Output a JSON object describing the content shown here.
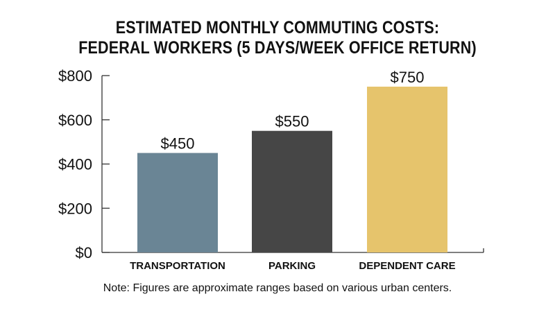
{
  "chart_data": {
    "type": "bar",
    "title_lines": [
      "ESTIMATED MONTHLY COMMUTING COSTS:",
      "FEDERAL WORKERS (5 DAYS/WEEK OFFICE RETURN)"
    ],
    "categories": [
      "TRANSPORTATION",
      "PARKING",
      "DEPENDENT CARE"
    ],
    "values": [
      450,
      550,
      750
    ],
    "data_labels": [
      "$450",
      "$550",
      "$750"
    ],
    "colors": [
      "#6a8595",
      "#464646",
      "#e6c46c"
    ],
    "ylim": [
      0,
      800
    ],
    "yticks": [
      0,
      200,
      400,
      600,
      800
    ],
    "ytick_labels": [
      "$0",
      "$200",
      "$400",
      "$600",
      "$800"
    ],
    "xlabel": "",
    "ylabel": "",
    "grid": false,
    "legend": "none"
  },
  "note": "Note: Figures are approximate ranges based on various urban centers."
}
